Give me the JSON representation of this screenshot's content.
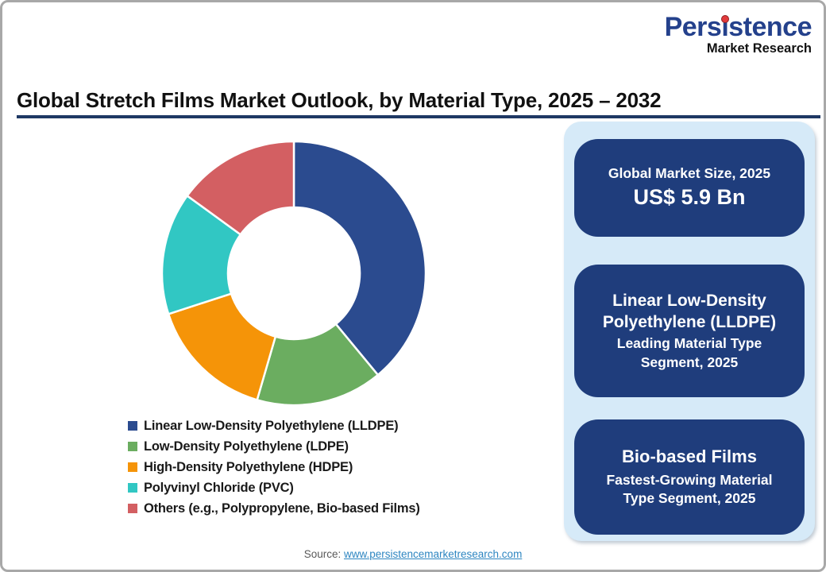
{
  "logo": {
    "word_part1": "Pers",
    "word_i": "i",
    "word_part2": "stence",
    "subtitle": "Market Research"
  },
  "title": "Global Stretch Films Market Outlook, by Material Type, 2025 – 2032",
  "chart_data": {
    "type": "pie",
    "subtype": "donut",
    "title": "Global Stretch Films Market Outlook, by Material Type, 2025 – 2032",
    "start_angle_deg": 0,
    "direction": "clockwise",
    "inner_radius_ratio": 0.5,
    "legend_position": "bottom-left",
    "values_unit": "% share (estimated from arc angles; no data labels shown)",
    "segments": [
      {
        "label": "Linear Low-Density Polyethylene (LLDPE)",
        "value": 39,
        "color": "#2B4B8F"
      },
      {
        "label": "Low-Density Polyethylene (LDPE)",
        "value": 15.5,
        "color": "#6BAD60"
      },
      {
        "label": "High-Density Polyethylene (HDPE)",
        "value": 15.5,
        "color": "#F59408"
      },
      {
        "label": "Polyvinyl Chloride (PVC)",
        "value": 15,
        "color": "#31C7C3"
      },
      {
        "label": "Others (e.g., Polypropylene, Bio-based Films)",
        "value": 15,
        "color": "#D35F62"
      }
    ]
  },
  "panel": {
    "background": "#D6EAF8",
    "box_background": "#1F3D7C",
    "boxes": [
      {
        "line1": "Global Market Size, 2025",
        "line2": "US$ 5.9 Bn"
      },
      {
        "line1": "Linear Low-Density Polyethylene (LLDPE)",
        "line2": "Leading Material Type Segment, 2025"
      },
      {
        "line1": "Bio-based Films",
        "line2": "Fastest-Growing Material Type Segment, 2025"
      }
    ]
  },
  "footer": {
    "source_label": "Source:",
    "source_link": "www.persistencemarketresearch.com"
  },
  "colors": {
    "title_rule": "#1F3864",
    "logo_blue": "#24418C",
    "logo_dot_red": "#E23A3C",
    "link_blue": "#2E86C1"
  }
}
